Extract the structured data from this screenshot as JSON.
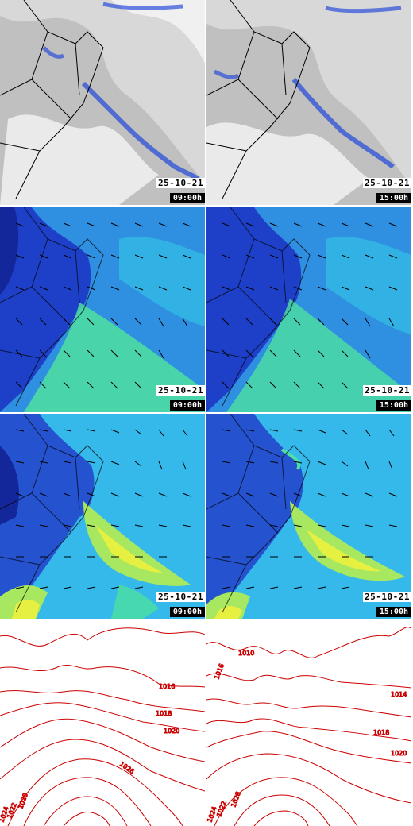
{
  "rows": [
    {
      "row_id": "satellite",
      "panels": [
        {
          "date": "25-10-21",
          "time": "09:00h"
        },
        {
          "date": "25-10-21",
          "time": "15:00h"
        }
      ]
    },
    {
      "row_id": "wind-level-1",
      "panels": [
        {
          "date": "25-10-21",
          "time": "09:00h"
        },
        {
          "date": "25-10-21",
          "time": "15:00h"
        }
      ]
    },
    {
      "row_id": "wind-level-2",
      "panels": [
        {
          "date": "25-10-21",
          "time": "09:00h"
        },
        {
          "date": "25-10-21",
          "time": "15:00h"
        }
      ]
    },
    {
      "row_id": "pressure",
      "panels": [
        {
          "isobar_labels": [
            "1016",
            "1018",
            "1020",
            "1026",
            "1024",
            "1022",
            "1028"
          ]
        },
        {
          "isobar_labels": [
            "1010",
            "1014",
            "1016",
            "1018",
            "1020",
            "1024",
            "1022",
            "1028"
          ]
        }
      ]
    }
  ],
  "colors": {
    "cloud_gray": "#b8b8b8",
    "rain_blue": "#2b4fd8",
    "wind_dark": "#1e40c8",
    "wind_mid": "#2f8fe0",
    "wind_light": "#35d0e8",
    "wind_green": "#4ee0a0",
    "wind_yellow": "#e6f040",
    "isobar_red": "#cc0000"
  }
}
